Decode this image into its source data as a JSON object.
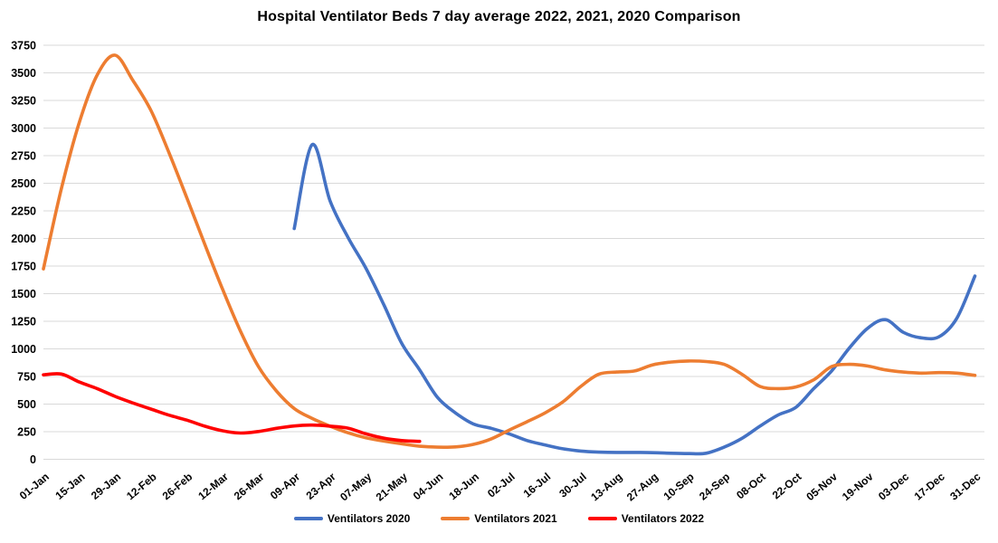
{
  "page": {
    "background": "#ffffff"
  },
  "chart_data": {
    "type": "line",
    "title": "Hospital Ventilator Beds 7 day average 2022, 2021, 2020 Comparison",
    "xlabel": "",
    "ylabel": "",
    "ylim": [
      0,
      3750
    ],
    "y_tick_step": 250,
    "y_tick_labels": [
      "0",
      "250",
      "500",
      "750",
      "1000",
      "1250",
      "1500",
      "1750",
      "2000",
      "2250",
      "2500",
      "2750",
      "3000",
      "3250",
      "3500",
      "3750"
    ],
    "x_tick_interval_days": 14,
    "x_tick_labels": [
      "01-Jan",
      "15-Jan",
      "29-Jan",
      "12-Feb",
      "26-Feb",
      "12-Mar",
      "26-Mar",
      "09-Apr",
      "23-Apr",
      "07-May",
      "21-May",
      "04-Jun",
      "18-Jun",
      "02-Jul",
      "16-Jul",
      "30-Jul",
      "13-Aug",
      "27-Aug",
      "10-Sep",
      "24-Sep",
      "08-Oct",
      "22-Oct",
      "05-Nov",
      "19-Nov",
      "03-Dec",
      "17-Dec",
      "31-Dec"
    ],
    "grid": "horizontal-only",
    "gridline_color": "#D9D9D9",
    "legend_position": "bottom",
    "sample_interval_days": 7,
    "series": [
      {
        "name": "Ventilators 2020",
        "color": "#4472C4",
        "start_day": 98,
        "values": [
          2090,
          2850,
          2340,
          2010,
          1730,
          1400,
          1050,
          810,
          560,
          420,
          320,
          280,
          230,
          170,
          130,
          95,
          75,
          65,
          62,
          62,
          60,
          55,
          52,
          55,
          110,
          190,
          300,
          400,
          470,
          640,
          800,
          1010,
          1185,
          1265,
          1150,
          1100,
          1110,
          1280,
          1660
        ]
      },
      {
        "name": "Ventilators 2021",
        "color": "#ED7D31",
        "start_day": 0,
        "values": [
          1725,
          2450,
          3050,
          3480,
          3660,
          3430,
          3160,
          2780,
          2370,
          1950,
          1540,
          1160,
          840,
          620,
          460,
          370,
          300,
          240,
          195,
          165,
          140,
          118,
          110,
          112,
          135,
          185,
          265,
          340,
          420,
          520,
          660,
          770,
          790,
          800,
          855,
          880,
          890,
          885,
          860,
          770,
          660,
          640,
          655,
          720,
          840,
          860,
          845,
          810,
          790,
          780,
          785,
          780,
          760
        ]
      },
      {
        "name": "Ventilators 2022",
        "color": "#FF0000",
        "start_day": 0,
        "values": [
          765,
          772,
          700,
          640,
          570,
          510,
          455,
          400,
          355,
          300,
          258,
          238,
          252,
          280,
          302,
          310,
          300,
          282,
          230,
          192,
          170,
          162
        ]
      }
    ]
  }
}
